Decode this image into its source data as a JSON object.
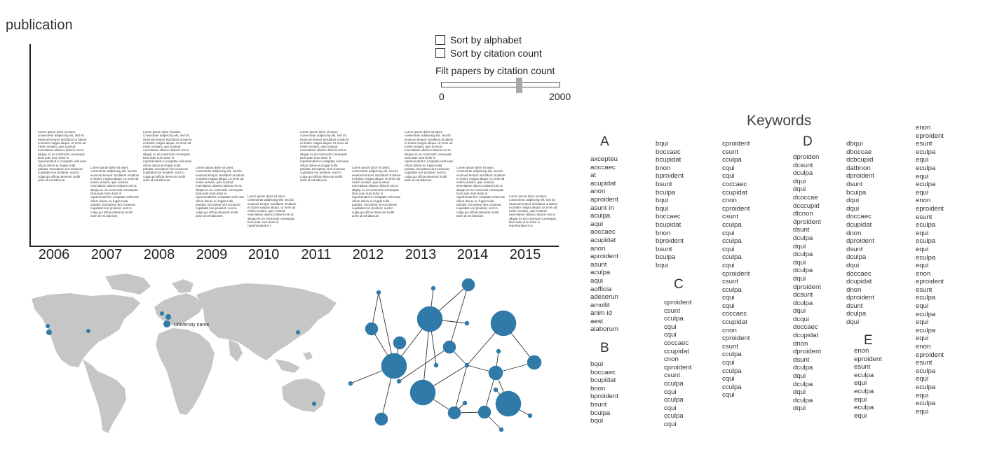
{
  "timeline": {
    "title": "publication",
    "years": [
      {
        "label": "2006",
        "text": "Lorem ipsum dolor sit amet, consectetur adipiscing elit, sed do eiusmod tempor incididunt ut labore et dolore magna aliqua. Ut enim ad minim veniam, quis nostrud exercitation ullamco laboris nisi ut aliquip ex ea commodo consequat. Duis aute irure dolor in reprehenderit in voluptate velit esse cillum dolore eu fugiat nulla pariatur. Excepteur sint occaecat cupidatat non proident, sunt in culpa qui officia deserunt mollit anim id est laborum."
      },
      {
        "label": "2007",
        "text": "Lorem ipsum dolor sit amet, consectetur adipiscing elit, sed do eiusmod tempor incididunt ut labore et dolore magna aliqua. Ut enim ad minim veniam, quis nostrud exercitation ullamco laboris nisi ut aliquip ex ea commodo consequat. Duis aute irure dolor in reprehenderit in voluptate velit esse cillum dolore eu fugiat nulla pariatur. Excepteur sint occaecat cupidatat non proident, sunt in culpa qui officia deserunt mollit anim id est laborum."
      },
      {
        "label": "2008",
        "text": "Lorem ipsum dolor sit amet, consectetur adipiscing elit, sed do eiusmod tempor incididunt ut labore et dolore magna aliqua. Ut enim ad minim veniam, quis nostrud exercitation ullamco laboris nisi ut aliquip ex ea commodo consequat. Duis aute irure dolor in reprehenderit in voluptate velit esse cillum dolore eu fugiat nulla pariatur. Excepteur sint occaecat cupidatat non proident, sunt in culpa qui officia deserunt mollit anim id est laborum."
      },
      {
        "label": "2009",
        "text": "Lorem ipsum dolor sit amet, consectetur adipiscing elit, sed do eiusmod tempor incididunt ut labore et dolore magna aliqua. Ut enim ad minim veniam, quis nostrud exercitation ullamco laboris nisi ut aliquip ex ea commodo consequat. Duis aute irure dolor in reprehenderit in voluptate velit esse cillum dolore eu fugiat nulla pariatur. Excepteur sint occaecat cupidatat non proident, sunt in culpa qui officia deserunt mollit anim id est laborum."
      },
      {
        "label": "2010",
        "text": "Lorem ipsum dolor sit amet, consectetur adipiscing elit, sed do eiusmod tempor incididunt ut labore et dolore magna aliqua. Ut enim ad minim veniam, quis nostrud exercitation ullamco laboris nisi ut aliquip ex ea commodo consequat. Duis aute irure dolor in reprehenderit in v"
      },
      {
        "label": "2011",
        "text": "Lorem ipsum dolor sit amet, consectetur adipiscing elit, sed do eiusmod tempor incididunt ut labore et dolore magna aliqua. Ut enim ad minim veniam, quis nostrud exercitation ullamco laboris nisi ut aliquip ex ea commodo consequat. Duis aute irure dolor in reprehenderit in voluptate velit esse cillum dolore eu fugiat nulla pariatur. Excepteur sint occaecat cupidatat non proident, sunt in culpa qui officia deserunt mollit anim id est laborum."
      },
      {
        "label": "2012",
        "text": "Lorem ipsum dolor sit amet, consectetur adipiscing elit, sed do eiusmod tempor incididunt ut labore et dolore magna aliqua. Ut enim ad minim veniam, quis nostrud exercitation ullamco laboris nisi ut aliquip ex ea commodo consequat. Duis aute irure dolor in reprehenderit in voluptate velit esse cillum dolore eu fugiat nulla pariatur. Excepteur sint occaecat cupidatat non proident, sunt in culpa qui officia deserunt mollit anim id est laborum."
      },
      {
        "label": "2013",
        "text": "Lorem ipsum dolor sit amet, consectetur adipiscing elit, sed do eiusmod tempor incididunt ut labore et dolore magna aliqua. Ut enim ad minim veniam, quis nostrud exercitation ullamco laboris nisi ut aliquip ex ea commodo consequat. Duis aute irure dolor in reprehenderit in voluptate velit esse cillum dolore eu fugiat nulla pariatur. Excepteur sint occaecat cupidatat non proident, sunt in culpa qui officia deserunt mollit anim id est laborum."
      },
      {
        "label": "2014",
        "text": "Lorem ipsum dolor sit amet, consectetur adipiscing elit, sed do eiusmod tempor incididunt ut labore et dolore magna aliqua. Ut enim ad minim veniam, quis nostrud exercitation ullamco laboris nisi ut aliquip ex ea commodo consequat. Duis aute irure dolor in reprehenderit in voluptate velit esse cillum dolore eu fugiat nulla pariatur. Excepteur sint occaecat cupidatat non proident, sunt in culpa qui officia deserunt mollit anim id est laborum."
      },
      {
        "label": "2015",
        "text": "Lorem ipsum dolor sit amet, consectetur adipiscing elit, sed do eiusmod tempor incididunt ut labore et dolore magna aliqua. Ut enim ad minim veniam, quis nostrud exercitation ullamco laboris nisi ut aliquip ex ea commodo consequat. Duis aute irure dolor in reprehenderit in v"
      }
    ]
  },
  "controls": {
    "sort_alphabet": "Sort by alphabet",
    "sort_citation": "Sort by citation count",
    "filter_label": "Filt papers by citation count",
    "slider_min": "0",
    "slider_max": "2000",
    "slider_value_fraction": 0.65
  },
  "map": {
    "marker_label": "University name",
    "land_color": "#c6c6c6",
    "marker_color": "#2f7aa8"
  },
  "network": {
    "node_color": "#2f7aa8"
  },
  "keywords": {
    "title": "Keywords",
    "columns": [
      {
        "letter": "A",
        "items": [
          "axcepteu",
          "aoccaec",
          "at",
          "acupidat",
          "anon",
          "aproident",
          "asunt in",
          "aculpa",
          "aqui",
          "aoccaec",
          "acupidat",
          "anon",
          "aproident",
          "asunt",
          "aculpa",
          "aqui",
          "aofficia",
          "adeserun",
          "amollit",
          "anim id",
          "aest",
          "alaborum"
        ]
      },
      {
        "letter": "B",
        "items": [
          "bqui",
          "boccaec",
          "bcupidat",
          "bnon",
          "bproident",
          "bsunt",
          "bculpa",
          "bqui"
        ]
      },
      {
        "letter": "",
        "items": [
          "bqui",
          "boccaec",
          "bcupidat",
          "bnon",
          "bproident",
          "bsunt",
          "bculpa",
          "bqui",
          "bqui",
          "boccaec",
          "bcupidat",
          "bnon",
          "bproident",
          "bsunt",
          "bculpa",
          "bqui"
        ]
      },
      {
        "letter": "C",
        "items": [
          "cproident",
          "csunt",
          "cculpa",
          "cqui",
          "cqui",
          "coccaec",
          "ccupidat",
          "cnon",
          "cproident",
          "csunt",
          "cculpa",
          "cqui",
          "cculpa",
          "cqui",
          "cculpa",
          "cqui"
        ]
      },
      {
        "letter": "",
        "items": [
          "cproident",
          "csunt",
          "cculpa",
          "cqui",
          "cqui",
          "coccaec",
          "ccupidat",
          "cnon",
          "cproident",
          "csunt",
          "cculpa",
          "cqui",
          "cculpa",
          "cqui",
          "cculpa",
          "cqui",
          "cproident",
          "csunt",
          "cculpa",
          "cqui",
          "cqui",
          "coccaec",
          "ccupidat",
          "cnon",
          "cproident",
          "csunt",
          "cculpa",
          "cqui",
          "cculpa",
          "cqui",
          "cculpa",
          "cqui"
        ]
      },
      {
        "letter": "D",
        "items": [
          "dproiden",
          "dcsunt",
          "dculpa",
          "dqui",
          "dqui",
          "dcoccae",
          "dcccupid",
          "dtcnon",
          "dproident",
          "dsunt",
          "dculpa",
          "dqui",
          "dculpa",
          "dqui",
          "dculpa",
          "dqui",
          "dproident",
          "dcsunt",
          "dculpa",
          "dqui",
          "dcqui",
          "doccaec",
          "dcupidat",
          "dnon",
          "dproident",
          "dsunt",
          "dculpa",
          "dqui",
          "dculpa",
          "dqui",
          "dculpa",
          "dqui"
        ]
      },
      {
        "letter": "",
        "items": [
          "dbqui",
          "dboccae",
          "dcbcupid",
          "datbnon",
          "dproident",
          "dsunt",
          "bculpa",
          "dqui",
          "dqui",
          "doccaec",
          "dcupidat",
          "dnon",
          "dproident",
          "dsunt",
          "dculpa",
          "dqui",
          "doccaec",
          "dcupidat",
          "dnon",
          "dproident",
          "dsunt",
          "dculpa",
          "dqui"
        ]
      },
      {
        "letter": "E",
        "items": [
          "enon",
          "eproident",
          "esunt",
          "eculpa",
          "equi",
          "eculpa",
          "equi",
          "eculpa",
          "equi"
        ]
      },
      {
        "letter": "",
        "items": [
          "enon",
          "eproident",
          "esunt",
          "eculpa",
          "equi",
          "eculpa",
          "equi",
          "eculpa",
          "equi",
          "enon",
          "eproident",
          "esunt",
          "eculpa",
          "equi",
          "eculpa",
          "equi",
          "eculpa",
          "equi",
          "enon",
          "eproident",
          "esunt",
          "eculpa",
          "equi",
          "eculpa",
          "equi",
          "eculpa",
          "equi",
          "enon",
          "eproident",
          "esunt",
          "eculpa",
          "equi",
          "eculpa",
          "equi",
          "eculpa",
          "equi"
        ]
      }
    ]
  }
}
